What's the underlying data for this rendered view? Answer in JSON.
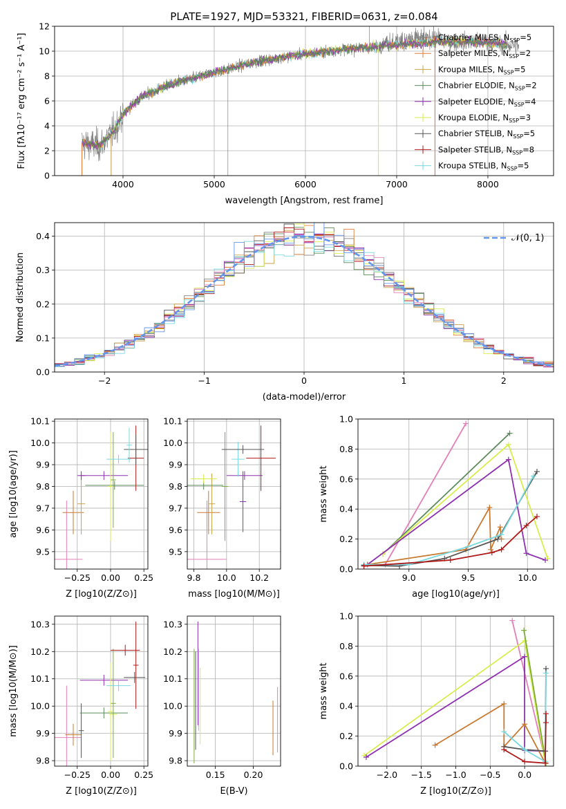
{
  "title": "PLATE=1927, MJD=53321, FIBERID=0631, z=0.084",
  "colors": {
    "chabrier_miles": "#7f7f7f",
    "salpeter_miles": "#e07b39",
    "kroupa_miles": "#c8a24a",
    "chabrier_elodie": "#5a8a5a",
    "salpeter_elodie": "#8e2fb0",
    "kroupa_elodie": "#d7ee4a",
    "chabrier_stelib": "#555555",
    "salpeter_stelib": "#b01818",
    "kroupa_stelib": "#77d8e0",
    "pink": "#e37fb8",
    "orange": "#c8782f",
    "normal": "#6495ed",
    "olive": "#7cac3c"
  },
  "chart_data": [
    {
      "type": "line",
      "panel": "spectrum",
      "title": "PLATE=1927, MJD=53321, FIBERID=0631, z=0.084",
      "xlabel": "wavelength [Angstrom, rest frame]",
      "ylabel": "Flux [fλ10⁻¹⁷ erg cm⁻² s⁻¹ A⁻¹]",
      "xlim": [
        3250,
        8720
      ],
      "ylim": [
        0,
        12
      ],
      "xticks": [
        "4000",
        "5000",
        "6000",
        "7000",
        "8000"
      ],
      "yticks": [
        "0",
        "2",
        "4",
        "6",
        "8",
        "10",
        "12"
      ],
      "legend_position": "right",
      "legend": [
        {
          "label": "Chabrier MILES, N",
          "sub": "SSP",
          "tail": "=5",
          "color": "#7f7f7f"
        },
        {
          "label": "Salpeter MILES, N",
          "sub": "SSP",
          "tail": "=2",
          "color": "#e07b39"
        },
        {
          "label": "Kroupa MILES, N",
          "sub": "SSP",
          "tail": "=5",
          "color": "#c8a24a"
        },
        {
          "label": "Chabrier ELODIE, N",
          "sub": "SSP",
          "tail": "=2",
          "color": "#5a8a5a"
        },
        {
          "label": "Salpeter ELODIE, N",
          "sub": "SSP",
          "tail": "=4",
          "color": "#8e2fb0"
        },
        {
          "label": "Kroupa ELODIE, N",
          "sub": "SSP",
          "tail": "=3",
          "color": "#d7ee4a"
        },
        {
          "label": "Chabrier STELIB, N",
          "sub": "SSP",
          "tail": "=5",
          "color": "#555555"
        },
        {
          "label": "Salpeter STELIB, N",
          "sub": "SSP",
          "tail": "=8",
          "color": "#b01818"
        },
        {
          "label": "Kroupa STELIB, N",
          "sub": "SSP",
          "tail": "=5",
          "color": "#77d8e0"
        }
      ],
      "data_x_start": 3550,
      "data_x_end": 8340,
      "continuum_anchors": [
        [
          3550,
          2.6
        ],
        [
          3750,
          2.4
        ],
        [
          3900,
          3.6
        ],
        [
          4000,
          5.0
        ],
        [
          4200,
          6.3
        ],
        [
          4500,
          7.3
        ],
        [
          5000,
          8.3
        ],
        [
          5500,
          9.2
        ],
        [
          6000,
          9.8
        ],
        [
          6500,
          10.2
        ],
        [
          7000,
          10.5
        ],
        [
          7500,
          10.8
        ],
        [
          8000,
          10.7
        ],
        [
          8340,
          10.4
        ]
      ]
    },
    {
      "type": "line",
      "panel": "residual-histogram",
      "xlabel": "(data-model)/error",
      "ylabel": "Normed distribution",
      "xlim": [
        -2.5,
        2.5
      ],
      "ylim": [
        0,
        0.44
      ],
      "xticks": [
        "−2",
        "−1",
        "0",
        "1",
        "2"
      ],
      "yticks": [
        "0.0",
        "0.1",
        "0.2",
        "0.3",
        "0.4"
      ],
      "legend": "𝒩(0, 1)",
      "legend_position": "top-right",
      "bin_width": 0.1,
      "reference_curve": "normal pdf, mean 0, sigma 1"
    },
    {
      "type": "scatter",
      "panel": "Z-vs-age",
      "xlabel": "Z [log10(Z/Z⊙)]",
      "ylabel": "age [log10(age/yr)]",
      "xlim": [
        -0.42,
        0.28
      ],
      "ylim": [
        9.42,
        10.11
      ],
      "xticks": [
        "−0.25",
        "0.00",
        "0.25"
      ],
      "yticks": [
        "9.5",
        "9.6",
        "9.7",
        "9.8",
        "9.9",
        "10.0",
        "10.1"
      ],
      "points": [
        {
          "x": -0.33,
          "y": 9.465,
          "xerr": 0.12,
          "yerr": 0.27,
          "color": "#e37fb8"
        },
        {
          "x": -0.28,
          "y": 9.68,
          "xerr": 0.08,
          "yerr": 0.1,
          "color": "#c8782f"
        },
        {
          "x": -0.22,
          "y": 9.72,
          "xerr": 0.03,
          "yerr": 0.14,
          "color": "#c8a24a"
        },
        {
          "x": -0.22,
          "y": 9.85,
          "xerr": 0.03,
          "yerr": 0.02,
          "color": "#8e2fb0"
        },
        {
          "x": -0.05,
          "y": 9.85,
          "xerr": 0.18,
          "yerr": 0.02,
          "color": "#8e2fb0"
        },
        {
          "x": 0.03,
          "y": 9.805,
          "xerr": 0.22,
          "yerr": 0.02,
          "color": "#5a8a5a"
        },
        {
          "x": 0.02,
          "y": 9.83,
          "xerr": 0.02,
          "yerr": 0.22,
          "color": "#7cac3c"
        },
        {
          "x": 0.0,
          "y": 9.8,
          "xerr": 0.02,
          "yerr": 0.25,
          "color": "#d7ee4a"
        },
        {
          "x": 0.06,
          "y": 9.925,
          "xerr": 0.09,
          "yerr": 0.02,
          "color": "#77d8e0"
        },
        {
          "x": 0.19,
          "y": 9.93,
          "xerr": 0.06,
          "yerr": 0.15,
          "color": "#b01818"
        },
        {
          "x": 0.19,
          "y": 9.97,
          "xerr": 0.09,
          "yerr": 0.07,
          "color": "#555555"
        },
        {
          "x": 0.14,
          "y": 9.99,
          "xerr": 0.02,
          "yerr": 0.08,
          "color": "#77d8e0"
        }
      ]
    },
    {
      "type": "scatter",
      "panel": "mass-vs-age",
      "xlabel": "mass [log10(M/M⊙)]",
      "ylabel": "",
      "xlim": [
        9.76,
        10.33
      ],
      "ylim": [
        9.42,
        10.11
      ],
      "xticks": [
        "9.8",
        "10.0",
        "10.2"
      ],
      "yticks": [
        "9.5",
        "9.6",
        "9.7",
        "9.8",
        "9.9",
        "10.0",
        "10.1"
      ],
      "points": [
        {
          "x": 9.88,
          "y": 9.465,
          "xerr": 0.12,
          "yerr": 0.27,
          "color": "#e37fb8"
        },
        {
          "x": 9.89,
          "y": 9.68,
          "xerr": 0.07,
          "yerr": 0.1,
          "color": "#c8782f"
        },
        {
          "x": 9.91,
          "y": 9.72,
          "xerr": 0.02,
          "yerr": 0.14,
          "color": "#c8a24a"
        },
        {
          "x": 9.86,
          "y": 9.805,
          "xerr": 0.12,
          "yerr": 0.02,
          "color": "#5a8a5a"
        },
        {
          "x": 9.86,
          "y": 9.835,
          "xerr": 0.08,
          "yerr": 0.02,
          "color": "#d7ee4a"
        },
        {
          "x": 9.99,
          "y": 9.8,
          "xerr": 0.02,
          "yerr": 0.25,
          "color": "#7cac3c"
        },
        {
          "x": 10.11,
          "y": 9.85,
          "xerr": 0.11,
          "yerr": 0.02,
          "color": "#8e2fb0"
        },
        {
          "x": 10.1,
          "y": 9.73,
          "xerr": 0.02,
          "yerr": 0.14,
          "color": "#8e2fb0"
        },
        {
          "x": 10.07,
          "y": 9.925,
          "xerr": 0.04,
          "yerr": 0.08,
          "color": "#77d8e0"
        },
        {
          "x": 10.21,
          "y": 9.93,
          "xerr": 0.09,
          "yerr": 0.15,
          "color": "#b01818"
        },
        {
          "x": 10.1,
          "y": 9.97,
          "xerr": 0.13,
          "yerr": 0.02,
          "color": "#555555"
        }
      ]
    },
    {
      "type": "line",
      "panel": "age-vs-mass-weight",
      "xlabel": "age [log10(age/yr)]",
      "ylabel": "mass weight",
      "xlim": [
        8.57,
        10.22
      ],
      "ylim": [
        0,
        1.0
      ],
      "xticks": [
        "9.0",
        "9.5",
        "10.0"
      ],
      "yticks": [
        "0.0",
        "0.2",
        "0.4",
        "0.6",
        "0.8",
        "1.0"
      ],
      "series": [
        {
          "color": "#e37fb8",
          "points": [
            [
              8.8,
              0.03
            ],
            [
              9.48,
              0.97
            ]
          ]
        },
        {
          "color": "#5a8a5a",
          "points": [
            [
              8.78,
              0.1
            ],
            [
              9.85,
              0.905
            ]
          ]
        },
        {
          "color": "#d7ee4a",
          "points": [
            [
              8.78,
              0.1
            ],
            [
              9.84,
              0.83
            ],
            [
              10.17,
              0.07
            ]
          ]
        },
        {
          "color": "#8e2fb0",
          "points": [
            [
              8.65,
              0.03
            ],
            [
              9.84,
              0.73
            ],
            [
              9.99,
              0.105
            ],
            [
              10.15,
              0.06
            ]
          ]
        },
        {
          "color": "#c8782f",
          "points": [
            [
              8.65,
              0.03
            ],
            [
              9.48,
              0.13
            ],
            [
              9.68,
              0.41
            ],
            [
              9.69,
              0.13
            ],
            [
              9.77,
              0.28
            ],
            [
              9.78,
              0.2
            ]
          ]
        },
        {
          "color": "#555555",
          "points": [
            [
              8.62,
              0.025
            ],
            [
              8.92,
              0.02
            ],
            [
              9.3,
              0.07
            ],
            [
              9.75,
              0.2
            ],
            [
              10.08,
              0.65
            ]
          ]
        },
        {
          "color": "#77d8e0",
          "points": [
            [
              8.62,
              0.03
            ],
            [
              9.0,
              0.03
            ],
            [
              9.5,
              0.15
            ],
            [
              9.78,
              0.23
            ],
            [
              10.05,
              0.62
            ]
          ]
        },
        {
          "color": "#b01818",
          "points": [
            [
              8.62,
              0.02
            ],
            [
              9.35,
              0.06
            ],
            [
              9.7,
              0.11
            ],
            [
              9.78,
              0.13
            ],
            [
              9.99,
              0.29
            ],
            [
              10.08,
              0.35
            ]
          ]
        }
      ]
    },
    {
      "type": "scatter",
      "panel": "Z-vs-mass",
      "xlabel": "Z [log10(Z/Z⊙)]",
      "ylabel": "mass [log10(M/M⊙)]",
      "xlim": [
        -0.42,
        0.28
      ],
      "ylim": [
        9.78,
        10.33
      ],
      "xticks": [
        "−0.25",
        "0.00",
        "0.25"
      ],
      "yticks": [
        "9.8",
        "9.9",
        "10.0",
        "10.1",
        "10.2",
        "10.3"
      ],
      "points": [
        {
          "x": -0.33,
          "y": 9.885,
          "xerr": 0.11,
          "yerr": 0.19,
          "color": "#e37fb8"
        },
        {
          "x": -0.28,
          "y": 9.895,
          "xerr": 0.06,
          "yerr": 0.04,
          "color": "#c8782f"
        },
        {
          "x": -0.22,
          "y": 9.91,
          "xerr": 0.02,
          "yerr": 0.1,
          "color": "#555555"
        },
        {
          "x": -0.05,
          "y": 10.095,
          "xerr": 0.18,
          "yerr": 0.02,
          "color": "#8e2fb0"
        },
        {
          "x": -0.05,
          "y": 9.975,
          "xerr": 0.18,
          "yerr": 0.02,
          "color": "#5a8a5a"
        },
        {
          "x": 0.02,
          "y": 9.97,
          "xerr": 0.03,
          "yerr": 0.02,
          "color": "#d7ee4a"
        },
        {
          "x": 0.02,
          "y": 10.01,
          "xerr": 0.02,
          "yerr": 0.2,
          "color": "#7cac3c"
        },
        {
          "x": 0.0,
          "y": 9.98,
          "xerr": 0.02,
          "yerr": 0.18,
          "color": "#d7ee4a"
        },
        {
          "x": 0.06,
          "y": 10.075,
          "xerr": 0.09,
          "yerr": 0.02,
          "color": "#77d8e0"
        },
        {
          "x": 0.11,
          "y": 10.205,
          "xerr": 0.11,
          "yerr": 0.02,
          "color": "#b01818"
        },
        {
          "x": 0.19,
          "y": 10.15,
          "xerr": 0.02,
          "yerr": 0.16,
          "color": "#b01818"
        },
        {
          "x": 0.18,
          "y": 10.105,
          "xerr": 0.08,
          "yerr": 0.02,
          "color": "#555555"
        }
      ]
    },
    {
      "type": "scatter",
      "panel": "EBV-vs-mass",
      "xlabel": "E(B-V)",
      "ylabel": "",
      "xlim": [
        0.113,
        0.236
      ],
      "ylim": [
        9.78,
        10.33
      ],
      "xticks": [
        "0.15",
        "0.20"
      ],
      "yticks": [
        "9.8",
        "9.9",
        "10.0",
        "10.1",
        "10.2",
        "10.3"
      ],
      "points": [
        {
          "x": 0.122,
          "y": 10.0,
          "xerr": 0.0,
          "yerr": 0.21,
          "color": "#7cac3c"
        },
        {
          "x": 0.124,
          "y": 10.02,
          "xerr": 0.0,
          "yerr": 0.18,
          "color": "#555555"
        },
        {
          "x": 0.127,
          "y": 10.12,
          "xerr": 0.0,
          "yerr": 0.19,
          "color": "#8e2fb0"
        },
        {
          "x": 0.128,
          "y": 10.06,
          "xerr": 0.0,
          "yerr": 0.15,
          "color": "#77d8e0"
        },
        {
          "x": 0.13,
          "y": 10.0,
          "xerr": 0.0,
          "yerr": 0.14,
          "color": "#d7ee4a"
        },
        {
          "x": 0.226,
          "y": 9.92,
          "xerr": 0.0,
          "yerr": 0.1,
          "color": "#c8782f"
        },
        {
          "x": 0.232,
          "y": 9.95,
          "xerr": 0.0,
          "yerr": 0.12,
          "color": "#e37fb8"
        }
      ]
    },
    {
      "type": "line",
      "panel": "Z-vs-mass-weight",
      "xlabel": "Z [log10(Z/Z⊙)]",
      "ylabel": "mass weight",
      "xlim": [
        -2.42,
        0.42
      ],
      "ylim": [
        0,
        1.0
      ],
      "xticks": [
        "−2.0",
        "−1.5",
        "−1.0",
        "−0.5",
        "0.0"
      ],
      "yticks": [
        "0.0",
        "0.2",
        "0.4",
        "0.6",
        "0.8",
        "1.0"
      ],
      "series": [
        {
          "color": "#e37fb8",
          "points": [
            [
              -0.18,
              0.97
            ],
            [
              0.31,
              0.02
            ]
          ]
        },
        {
          "color": "#d7ee4a",
          "points": [
            [
              -2.33,
              0.07
            ],
            [
              0.0,
              0.835
            ],
            [
              0.3,
              0.02
            ]
          ]
        },
        {
          "color": "#8e2fb0",
          "points": [
            [
              -2.3,
              0.06
            ],
            [
              0.0,
              0.73
            ],
            [
              0.0,
              0.105
            ],
            [
              0.3,
              0.1
            ]
          ]
        },
        {
          "color": "#7cac3c",
          "points": [
            [
              -0.01,
              0.905
            ],
            [
              0.31,
              0.02
            ]
          ]
        },
        {
          "color": "#c8782f",
          "points": [
            [
              -1.3,
              0.14
            ],
            [
              -0.3,
              0.415
            ],
            [
              -0.3,
              0.13
            ],
            [
              0.0,
              0.28
            ],
            [
              0.3,
              0.02
            ]
          ]
        },
        {
          "color": "#555555",
          "points": [
            [
              -0.3,
              0.13
            ],
            [
              0.0,
              0.11
            ],
            [
              0.3,
              0.1
            ],
            [
              0.31,
              0.65
            ]
          ]
        },
        {
          "color": "#77d8e0",
          "points": [
            [
              -0.3,
              0.23
            ],
            [
              0.0,
              0.11
            ],
            [
              0.3,
              0.03
            ],
            [
              0.31,
              0.62
            ]
          ]
        },
        {
          "color": "#b01818",
          "points": [
            [
              -0.3,
              0.11
            ],
            [
              0.0,
              0.03
            ],
            [
              0.3,
              0.02
            ],
            [
              0.31,
              0.35
            ],
            [
              0.31,
              0.29
            ]
          ]
        }
      ]
    }
  ]
}
